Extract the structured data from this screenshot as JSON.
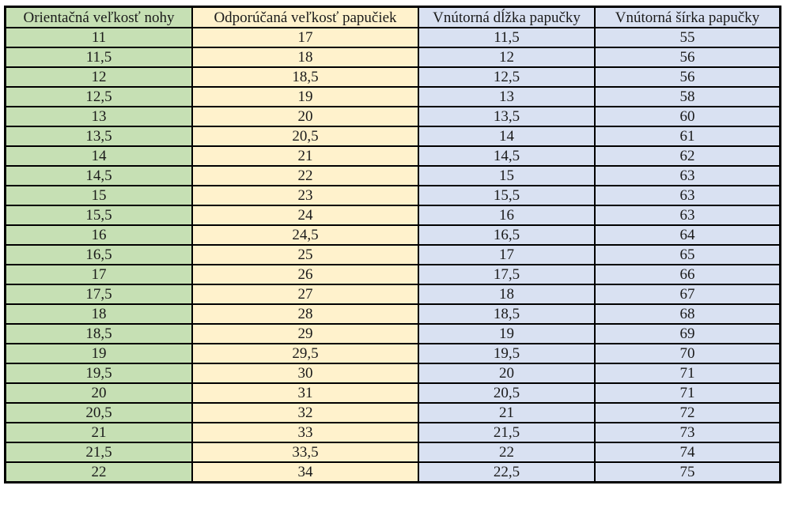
{
  "table": {
    "headers": [
      "Orientačná veľkosť nohy",
      "Odporúčaná veľkosť papučiek",
      "Vnútorná dĺžka papučky",
      "Vnútorná šírka papučky"
    ],
    "column_colors": [
      "#c6e0b4",
      "#fff2cc",
      "#d9e1f2",
      "#d9e1f2"
    ],
    "rows": [
      [
        "11",
        "17",
        "11,5",
        "55"
      ],
      [
        "11,5",
        "18",
        "12",
        "56"
      ],
      [
        "12",
        "18,5",
        "12,5",
        "56"
      ],
      [
        "12,5",
        "19",
        "13",
        "58"
      ],
      [
        "13",
        "20",
        "13,5",
        "60"
      ],
      [
        "13,5",
        "20,5",
        "14",
        "61"
      ],
      [
        "14",
        "21",
        "14,5",
        "62"
      ],
      [
        "14,5",
        "22",
        "15",
        "63"
      ],
      [
        "15",
        "23",
        "15,5",
        "63"
      ],
      [
        "15,5",
        "24",
        "16",
        "63"
      ],
      [
        "16",
        "24,5",
        "16,5",
        "64"
      ],
      [
        "16,5",
        "25",
        "17",
        "65"
      ],
      [
        "17",
        "26",
        "17,5",
        "66"
      ],
      [
        "17,5",
        "27",
        "18",
        "67"
      ],
      [
        "18",
        "28",
        "18,5",
        "68"
      ],
      [
        "18,5",
        "29",
        "19",
        "69"
      ],
      [
        "19",
        "29,5",
        "19,5",
        "70"
      ],
      [
        "19,5",
        "30",
        "20",
        "71"
      ],
      [
        "20",
        "31",
        "20,5",
        "71"
      ],
      [
        "20,5",
        "32",
        "21",
        "72"
      ],
      [
        "21",
        "33",
        "21,5",
        "73"
      ],
      [
        "21,5",
        "33,5",
        "22",
        "74"
      ],
      [
        "22",
        "34",
        "22,5",
        "75"
      ]
    ]
  }
}
